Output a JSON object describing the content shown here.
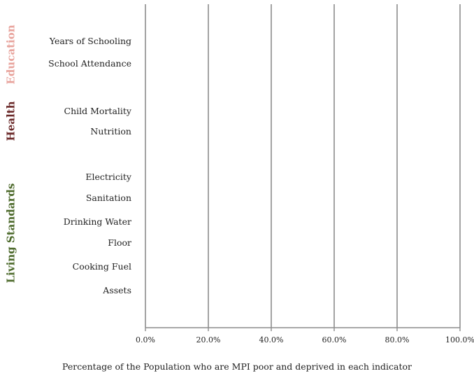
{
  "chart_data": {
    "type": "bar",
    "orientation": "horizontal",
    "xlabel": "Percentage of the Population who are MPI poor and deprived in each indicator",
    "xlim": [
      0,
      100
    ],
    "x_ticks": [
      "0.0%",
      "20.0%",
      "40.0%",
      "60.0%",
      "80.0%",
      "100.0%"
    ],
    "grid": true,
    "groups": [
      {
        "name": "Education",
        "color": "#e8a39c",
        "categories": [
          "Years of Schooling",
          "School Attendance"
        ],
        "values": [
          null,
          null
        ]
      },
      {
        "name": "Health",
        "color": "#6b2a2a",
        "categories": [
          "Child Mortality",
          "Nutrition"
        ],
        "values": [
          null,
          null
        ]
      },
      {
        "name": "Living Standards",
        "color": "#4e6b2d",
        "categories": [
          "Electricity",
          "Sanitation",
          "Drinking Water",
          "Floor",
          "Cooking Fuel",
          "Assets"
        ],
        "values": [
          null,
          null,
          null,
          null,
          null,
          null
        ]
      }
    ]
  }
}
